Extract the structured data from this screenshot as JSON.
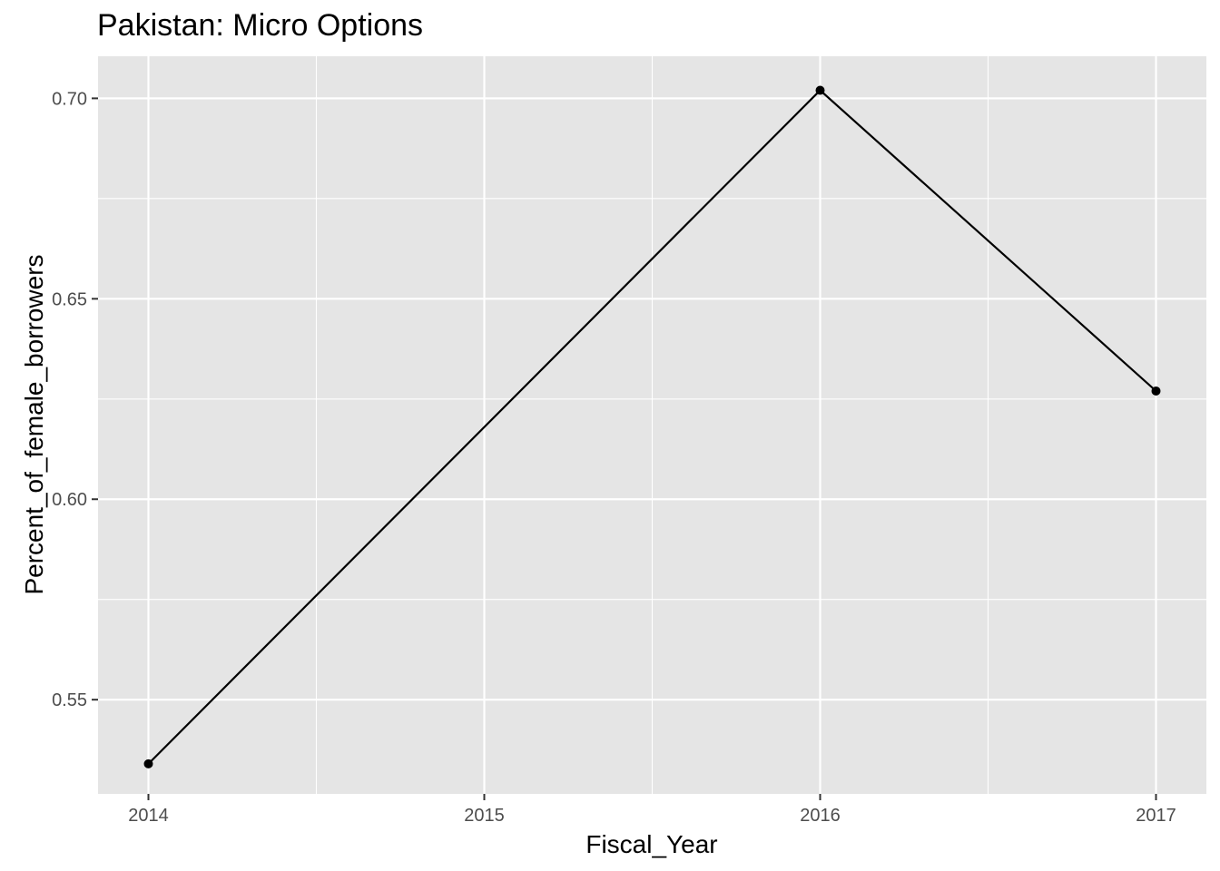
{
  "chart_data": {
    "type": "line",
    "title": "Pakistan:  Micro Options",
    "xlabel": "Fiscal_Year",
    "ylabel": "Percent_of_female_borrowers",
    "x": [
      2014,
      2016,
      2017
    ],
    "series": [
      {
        "values": [
          0.534,
          0.702,
          0.627
        ],
        "color": "#000000"
      }
    ],
    "x_ticks": [
      "2014",
      "2015",
      "2016",
      "2017"
    ],
    "y_ticks": [
      "0.55",
      "0.60",
      "0.65",
      "0.70"
    ],
    "xlim": [
      2013.85,
      2017.15
    ],
    "ylim": [
      0.5265,
      0.7105
    ],
    "grid": true,
    "panel_background": "#e5e5e5",
    "grid_color": "#ffffff"
  }
}
